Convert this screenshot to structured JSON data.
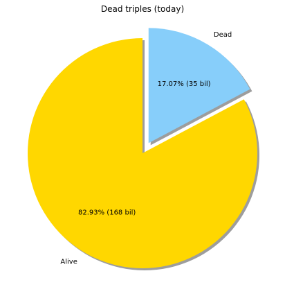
{
  "chart_data": {
    "type": "pie",
    "title": "Dead triples (today)",
    "slices": [
      {
        "label": "Dead",
        "value": 35,
        "percent": 17.07,
        "autopct": "17.07%  (35 bil)",
        "color": "#87CEFA",
        "exploded": true
      },
      {
        "label": "Alive",
        "value": 168,
        "percent": 82.93,
        "autopct": "82.93%  (168 bil)",
        "color": "#FFD700",
        "exploded": false
      }
    ],
    "start_angle_deg": 90,
    "direction": "clockwise",
    "shadow": true
  }
}
